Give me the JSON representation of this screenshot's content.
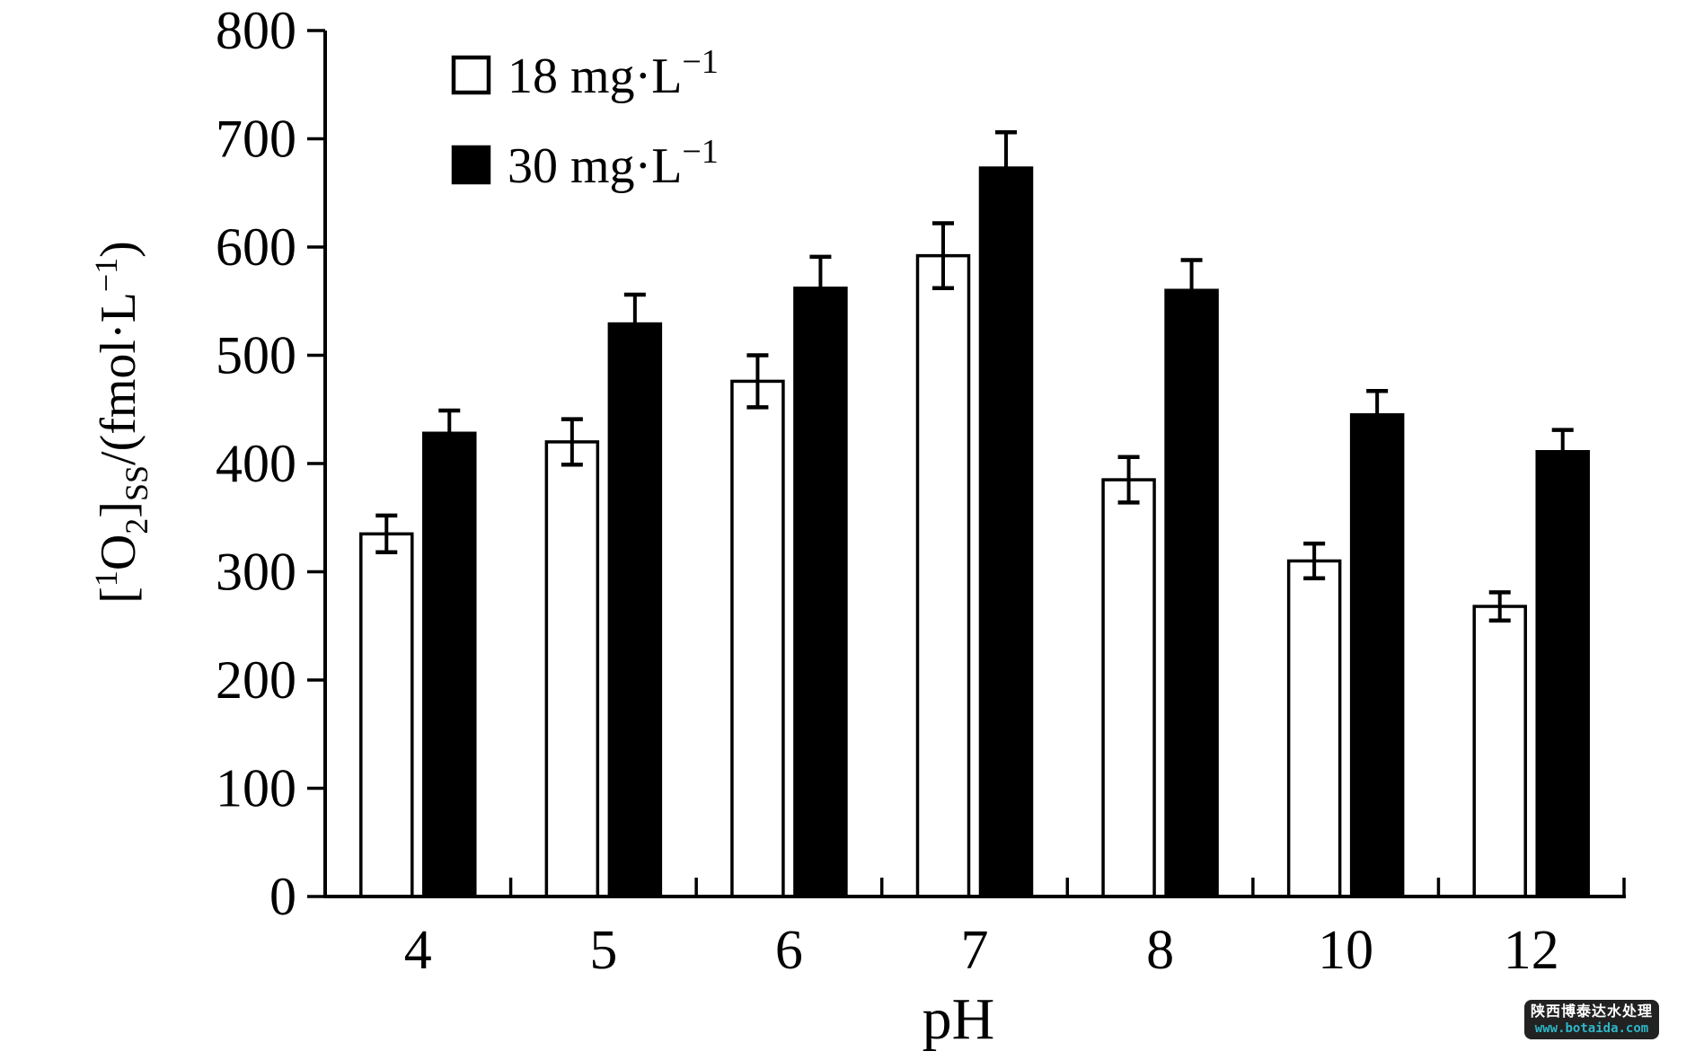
{
  "chart_data": {
    "type": "bar",
    "title": "",
    "xlabel": "pH",
    "ylabel": "[1O2]SS/(fmol·L-1)",
    "ylabel_parts": [
      {
        "t": "[",
        "k": "n"
      },
      {
        "t": "1",
        "k": "sup"
      },
      {
        "t": "O",
        "k": "n"
      },
      {
        "t": "2",
        "k": "sub"
      },
      {
        "t": "]",
        "k": "n"
      },
      {
        "t": "SS",
        "k": "sub"
      },
      {
        "t": "/(fmol·L",
        "k": "n"
      },
      {
        "t": "−1",
        "k": "sup"
      },
      {
        "t": ")",
        "k": "n"
      }
    ],
    "categories": [
      "4",
      "5",
      "6",
      "7",
      "8",
      "10",
      "12"
    ],
    "series": [
      {
        "name": "18 mg·L−1",
        "fill": "#ffffff",
        "values": [
          335,
          420,
          476,
          592,
          385,
          310,
          268
        ],
        "errors": [
          17,
          21,
          24,
          30,
          21,
          16,
          13
        ]
      },
      {
        "name": "30 mg·L−1",
        "fill": "#000000",
        "values": [
          428,
          529,
          562,
          673,
          560,
          445,
          411
        ],
        "errors": [
          21,
          27,
          29,
          33,
          28,
          22,
          20
        ]
      }
    ],
    "ylim": [
      0,
      800
    ],
    "ytick_step": 100,
    "ytick_labels": [
      "0",
      "100",
      "200",
      "300",
      "400",
      "500",
      "600",
      "700",
      "800"
    ],
    "grid": false,
    "legend_position": "top-left-inside"
  },
  "legend": {
    "items": [
      {
        "label_base": "18 mg·L",
        "label_sup": "−1",
        "swatch": "#ffffff"
      },
      {
        "label_base": "30 mg·L",
        "label_sup": "−1",
        "swatch": "#000000"
      }
    ]
  },
  "watermark": {
    "line1": "陕西博泰达水处理",
    "line2": "www.botaida.com",
    "bg": "#222222",
    "line1_color": "#ffffff",
    "line2_color": "#2eb6c8"
  },
  "colors": {
    "axis": "#000000",
    "text": "#000000",
    "background": "#ffffff"
  }
}
